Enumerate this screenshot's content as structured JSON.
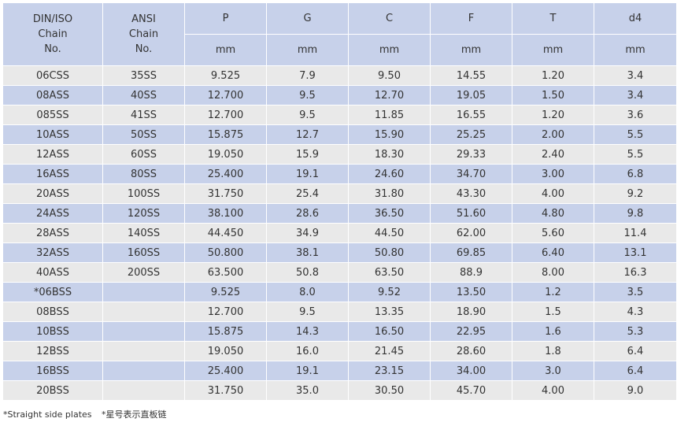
{
  "header": {
    "din_iso": [
      "DIN/ISO",
      "Chain",
      "No."
    ],
    "ansi": [
      "ANSI",
      "Chain",
      "No."
    ],
    "columns": [
      "P",
      "G",
      "C",
      "F",
      "T",
      "d4"
    ],
    "units": [
      "mm",
      "mm",
      "mm",
      "mm",
      "mm",
      "mm"
    ]
  },
  "rows": [
    [
      "06CSS",
      "35SS",
      "9.525",
      "7.9",
      "9.50",
      "14.55",
      "1.20",
      "3.4"
    ],
    [
      "08ASS",
      "40SS",
      "12.700",
      "9.5",
      "12.70",
      "19.05",
      "1.50",
      "3.4"
    ],
    [
      "085SS",
      "41SS",
      "12.700",
      "9.5",
      "11.85",
      "16.55",
      "1.20",
      "3.6"
    ],
    [
      "10ASS",
      "50SS",
      "15.875",
      "12.7",
      "15.90",
      "25.25",
      "2.00",
      "5.5"
    ],
    [
      "12ASS",
      "60SS",
      "19.050",
      "15.9",
      "18.30",
      "29.33",
      "2.40",
      "5.5"
    ],
    [
      "16ASS",
      "80SS",
      "25.400",
      "19.1",
      "24.60",
      "34.70",
      "3.00",
      "6.8"
    ],
    [
      "20ASS",
      "100SS",
      "31.750",
      "25.4",
      "31.80",
      "43.30",
      "4.00",
      "9.2"
    ],
    [
      "24ASS",
      "120SS",
      "38.100",
      "28.6",
      "36.50",
      "51.60",
      "4.80",
      "9.8"
    ],
    [
      "28ASS",
      "140SS",
      "44.450",
      "34.9",
      "44.50",
      "62.00",
      "5.60",
      "11.4"
    ],
    [
      "32ASS",
      "160SS",
      "50.800",
      "38.1",
      "50.80",
      "69.85",
      "6.40",
      "13.1"
    ],
    [
      "40ASS",
      "200SS",
      "63.500",
      "50.8",
      "63.50",
      "88.9",
      "8.00",
      "16.3"
    ],
    [
      "*06BSS",
      "",
      "9.525",
      "8.0",
      "9.52",
      "13.50",
      "1.2",
      "3.5"
    ],
    [
      "08BSS",
      "",
      "12.700",
      "9.5",
      "13.35",
      "18.90",
      "1.5",
      "4.3"
    ],
    [
      "10BSS",
      "",
      "15.875",
      "14.3",
      "16.50",
      "22.95",
      "1.6",
      "5.3"
    ],
    [
      "12BSS",
      "",
      "19.050",
      "16.0",
      "21.45",
      "28.60",
      "1.8",
      "6.4"
    ],
    [
      "16BSS",
      "",
      "25.400",
      "19.1",
      "23.15",
      "34.00",
      "3.0",
      "6.4"
    ],
    [
      "20BSS",
      "",
      "31.750",
      "35.0",
      "30.50",
      "45.70",
      "4.00",
      "9.0"
    ]
  ],
  "footer": {
    "note_en": "*Straight side plates",
    "note_cn": "*星号表示直板链"
  },
  "colors": {
    "header_bg": "#c7d1ea",
    "row_odd": "#e9e9e9",
    "row_even": "#c7d1ea"
  }
}
